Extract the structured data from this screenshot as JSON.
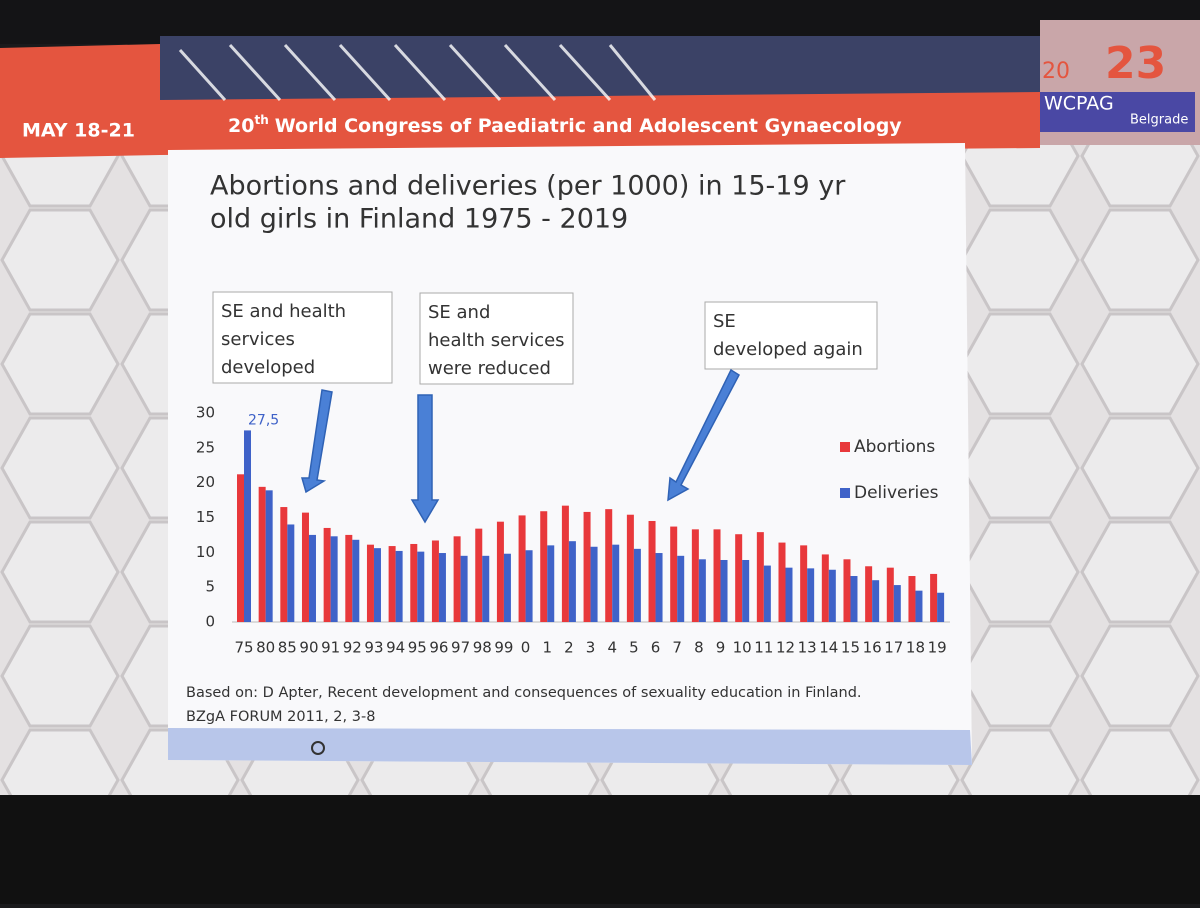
{
  "header": {
    "dates": "MAY 18-21",
    "congress_number": "20",
    "congress_suffix": "th",
    "congress_name": "World Congress of Paediatric and Adolescent Gynaecology",
    "logo_year_a": "20",
    "logo_year_b": "23",
    "logo_name": "WCPAG",
    "logo_city": "Belgrade"
  },
  "chart_data": {
    "type": "bar",
    "title_lines": [
      "Abortions and deliveries (per 1000) in 15-19 yr",
      "old girls in Finland 1975 - 2019"
    ],
    "categories": [
      "75",
      "80",
      "85",
      "90",
      "91",
      "92",
      "93",
      "94",
      "95",
      "96",
      "97",
      "98",
      "99",
      "0",
      "1",
      "2",
      "3",
      "4",
      "5",
      "6",
      "7",
      "8",
      "9",
      "10",
      "11",
      "12",
      "13",
      "14",
      "15",
      "16",
      "17",
      "18",
      "19"
    ],
    "series": [
      {
        "name": "Abortions",
        "color": "#e8383b",
        "values": [
          21.2,
          19.4,
          16.5,
          15.7,
          13.5,
          12.5,
          11.1,
          10.9,
          11.2,
          11.7,
          12.3,
          13.4,
          14.4,
          15.3,
          15.9,
          16.7,
          15.8,
          16.2,
          15.4,
          14.5,
          13.7,
          13.3,
          13.3,
          12.6,
          12.9,
          11.4,
          11.0,
          9.7,
          9.0,
          8.0,
          7.8,
          6.6,
          6.9
        ]
      },
      {
        "name": "Deliveries",
        "color": "#3f62c8",
        "values": [
          27.5,
          18.9,
          14,
          12.5,
          12.3,
          11.8,
          10.6,
          10.2,
          10.1,
          9.9,
          9.5,
          9.5,
          9.8,
          10.3,
          11.0,
          11.6,
          10.8,
          11.1,
          10.5,
          9.9,
          9.5,
          9.0,
          8.9,
          8.9,
          8.1,
          7.8,
          7.7,
          7.5,
          6.6,
          6.0,
          5.3,
          4.5,
          4.2
        ],
        "value_labels": [
          "27,5",
          null,
          null,
          null,
          null,
          null,
          null,
          null,
          null,
          null,
          null,
          null,
          null,
          null,
          null,
          null,
          null,
          null,
          null,
          null,
          null,
          null,
          null,
          null,
          null,
          null,
          null,
          null,
          null,
          null,
          null,
          null,
          null
        ]
      }
    ],
    "ylim": [
      0,
      30
    ],
    "yticks": [
      0,
      5,
      10,
      15,
      20,
      25,
      30
    ],
    "grid": false,
    "legend": "right",
    "annotations": [
      {
        "lines": [
          "SE and health",
          "services",
          "developed"
        ]
      },
      {
        "lines": [
          "SE and",
          "health services",
          "were reduced"
        ]
      },
      {
        "lines": [
          "SE",
          "developed again"
        ]
      }
    ],
    "source_lines": [
      "Based on: D Apter, Recent development and consequences of sexuality education in Finland.",
      "BZgA FORUM 2011, 2, 3-8"
    ]
  }
}
